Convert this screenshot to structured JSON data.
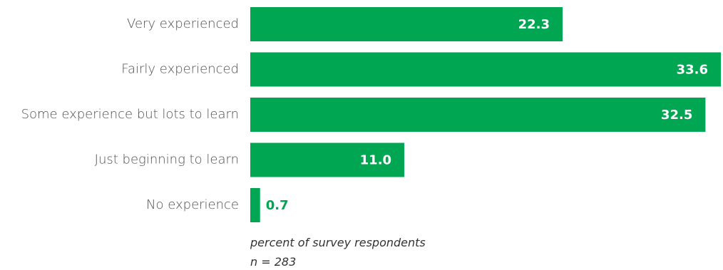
{
  "chart_data": {
    "type": "bar",
    "orientation": "horizontal",
    "categories": [
      "Very experienced",
      "Fairly experienced",
      "Some experience but lots to learn",
      "Just beginning to learn",
      "No experience"
    ],
    "values": [
      22.3,
      33.6,
      32.5,
      11.0,
      0.7
    ],
    "value_labels": [
      "22.3",
      "33.6",
      "32.5",
      "11.0",
      "0.7"
    ],
    "xlim": [
      0,
      33.6
    ],
    "grid": false,
    "legend": "none",
    "bar_color": "#00a651",
    "label_inside_color": "#ffffff",
    "label_outside_color": "#00a651",
    "notes": [
      "percent of survey respondents",
      "n = 283"
    ]
  }
}
